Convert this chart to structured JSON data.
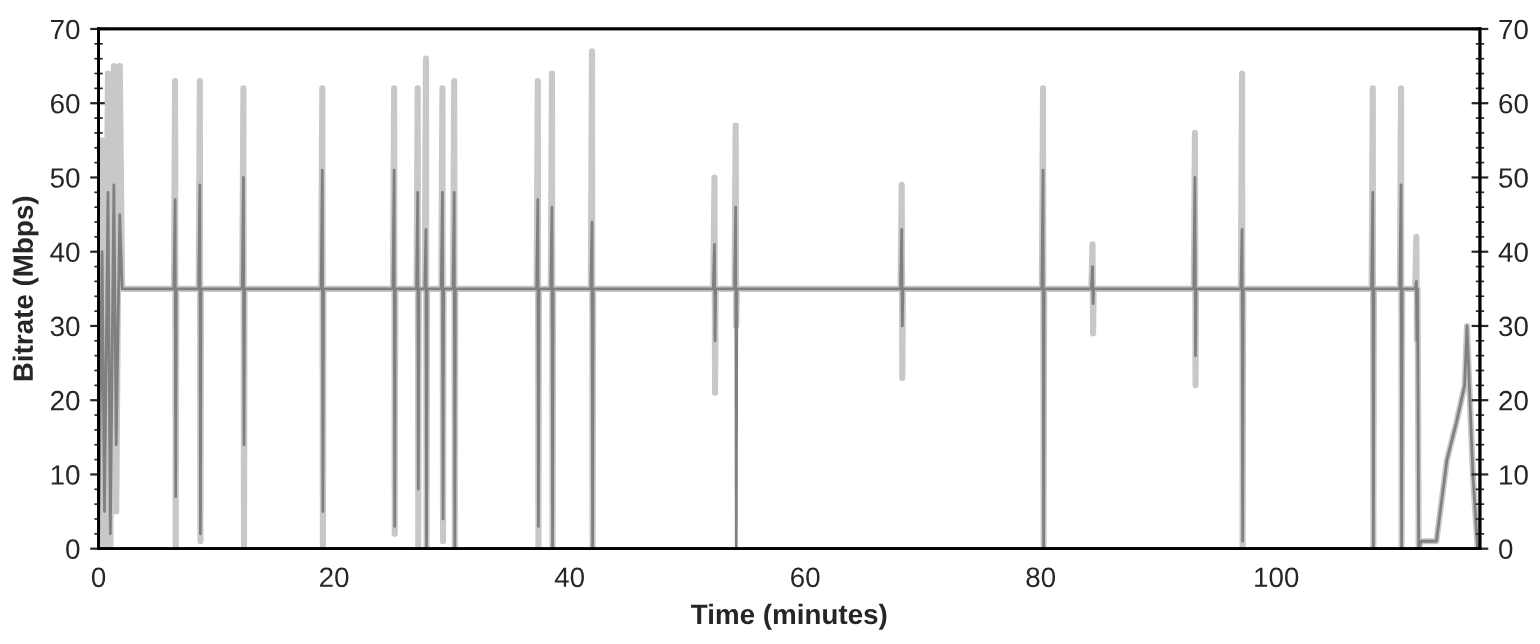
{
  "chart_data": {
    "type": "line",
    "xlabel": "Time (minutes)",
    "ylabel": "Bitrate (Mbps)",
    "x": [
      0,
      0.3,
      0.5,
      0.8,
      1.0,
      1.3,
      1.5,
      1.8,
      2.0,
      6.4,
      6.5,
      6.55,
      6.6,
      8.5,
      8.6,
      8.65,
      8.7,
      12.2,
      12.3,
      12.35,
      12.4,
      18.9,
      19,
      19.05,
      19.1,
      25.0,
      25.1,
      25.15,
      25.2,
      27.0,
      27.1,
      27.15,
      27.2,
      27.7,
      27.8,
      27.85,
      27.9,
      29.1,
      29.2,
      29.25,
      29.3,
      30.1,
      30.2,
      30.25,
      30.3,
      37.2,
      37.3,
      37.35,
      37.4,
      38.4,
      38.5,
      38.55,
      38.6,
      41.8,
      41.9,
      41.95,
      42.0,
      52.2,
      52.3,
      52.35,
      52.4,
      54.0,
      54.1,
      54.15,
      54.2,
      68.1,
      68.2,
      68.25,
      68.3,
      80.1,
      80.2,
      80.25,
      80.3,
      84.3,
      84.4,
      84.45,
      84.5,
      93.0,
      93.1,
      93.15,
      93.2,
      97.0,
      97.1,
      97.15,
      97.2,
      108.1,
      108.2,
      108.25,
      108.3,
      110.5,
      110.6,
      110.65,
      110.7,
      111.8,
      111.9,
      111.95,
      112.0,
      112.1,
      112.3,
      113.6,
      114.5,
      115.3,
      116.0,
      116.2,
      116.7,
      117.1
    ],
    "series": [
      {
        "color": "#c8c8c8",
        "values": [
          0,
          55,
          0,
          64,
          0,
          65,
          5,
          65,
          35,
          35,
          63,
          0,
          35,
          35,
          63,
          1,
          35,
          35,
          62,
          0,
          35,
          35,
          62,
          0,
          35,
          35,
          62,
          2,
          35,
          35,
          62,
          0,
          35,
          35,
          66,
          0,
          35,
          35,
          62,
          1,
          35,
          35,
          63,
          0,
          35,
          35,
          63,
          0,
          35,
          35,
          64,
          0,
          35,
          35,
          67,
          0,
          35,
          35,
          50,
          21,
          35,
          35,
          57,
          30,
          35,
          35,
          49,
          23,
          35,
          35,
          62,
          0,
          35,
          35,
          41,
          29,
          35,
          35,
          56,
          22,
          35,
          35,
          64,
          0,
          35,
          35,
          62,
          0,
          35,
          35,
          62,
          0,
          35,
          35,
          42,
          28,
          35,
          0,
          1,
          1,
          12,
          17,
          22,
          30,
          10,
          0
        ]
      },
      {
        "color": "#808080",
        "values": [
          0,
          40,
          5,
          48,
          2,
          49,
          14,
          45,
          35,
          35,
          47,
          7,
          35,
          35,
          49,
          2,
          35,
          35,
          50,
          14,
          35,
          35,
          51,
          5,
          35,
          35,
          51,
          3,
          35,
          35,
          48,
          8,
          35,
          35,
          43,
          0,
          35,
          35,
          48,
          4,
          35,
          35,
          48,
          0,
          35,
          35,
          47,
          3,
          35,
          35,
          46,
          0,
          35,
          35,
          44,
          0,
          35,
          35,
          41,
          28,
          35,
          35,
          46,
          0,
          35,
          35,
          43,
          30,
          35,
          35,
          51,
          0,
          35,
          35,
          38,
          33,
          35,
          35,
          50,
          26,
          35,
          35,
          43,
          1,
          35,
          35,
          48,
          0,
          35,
          35,
          49,
          0,
          35,
          35,
          36,
          28,
          35,
          0,
          1,
          1,
          12,
          17,
          22,
          30,
          10,
          0
        ]
      }
    ],
    "xlim": [
      0,
      117.3
    ],
    "xticks": [
      0,
      20,
      40,
      60,
      80,
      100
    ],
    "ylim": [
      0,
      70
    ],
    "yticks": [
      0,
      10,
      20,
      30,
      40,
      50,
      60,
      70
    ],
    "y2lim": [
      0,
      70
    ],
    "y2ticks": [
      0,
      10,
      20,
      30,
      40,
      50,
      60,
      70
    ],
    "grid": false,
    "legend": false
  }
}
